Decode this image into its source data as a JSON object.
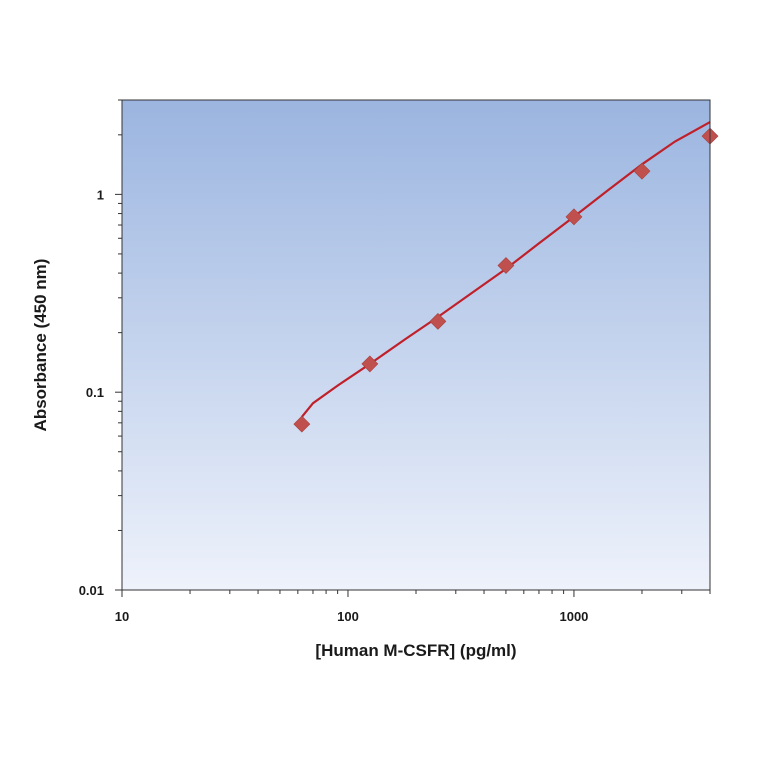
{
  "chart_data": {
    "type": "scatter",
    "title": "",
    "xlabel": "[Human M-CSFR] (pg/ml)",
    "ylabel": "Absorbance (450 nm)",
    "x_scale": "log",
    "y_scale": "log",
    "xlim": [
      10,
      4000
    ],
    "ylim": [
      0.01,
      3
    ],
    "x_ticks": [
      {
        "value": 10,
        "label": "10"
      },
      {
        "value": 100,
        "label": "100"
      },
      {
        "value": 1000,
        "label": "1000"
      }
    ],
    "y_ticks": [
      {
        "value": 0.01,
        "label": "0.01"
      },
      {
        "value": 0.1,
        "label": "0.1"
      },
      {
        "value": 1,
        "label": "1"
      }
    ],
    "grid": false,
    "legend": "none",
    "series": [
      {
        "x": [
          62.5,
          125,
          250,
          500,
          1000,
          2000,
          4000
        ],
        "y": [
          0.069,
          0.139,
          0.228,
          0.437,
          0.77,
          1.31,
          1.97
        ]
      }
    ],
    "fit_curve": {
      "x": [
        62.5,
        70,
        90,
        125,
        180,
        250,
        350,
        500,
        700,
        1000,
        1400,
        2000,
        2800,
        4000
      ],
      "y": [
        0.075,
        0.088,
        0.108,
        0.139,
        0.186,
        0.24,
        0.315,
        0.42,
        0.565,
        0.77,
        1.04,
        1.42,
        1.85,
        2.32
      ]
    },
    "colors": {
      "marker": "#c0504d",
      "line": "#c0202a",
      "plot_bg_top": "#9bb5e0",
      "plot_bg_bottom": "#eef2fb",
      "axis": "#333333"
    }
  }
}
